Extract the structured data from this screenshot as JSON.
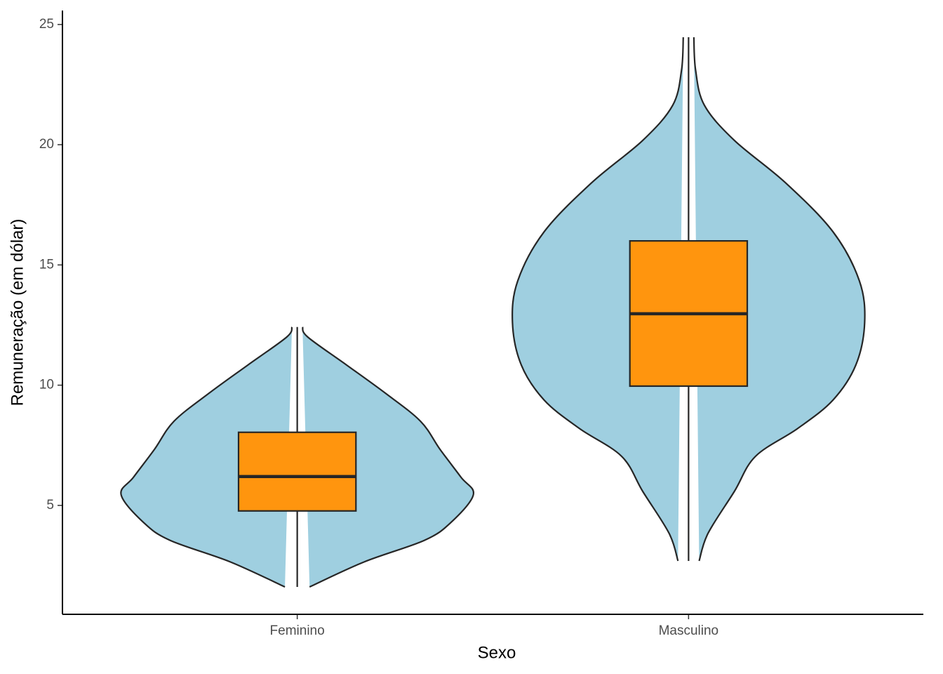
{
  "chart_data": {
    "type": "violin",
    "x_label": "Sexo",
    "y_label": "Remuneração (em dólar)",
    "categories": [
      "Feminino",
      "Masculino"
    ],
    "violin_color": "#9fcfe0",
    "box_color": "#ff950e",
    "ylim": [
      0.47,
      25.58
    ],
    "yticks": [
      5,
      10,
      15,
      20,
      25
    ],
    "boxes": [
      {
        "min": 1.61,
        "q1": 4.77,
        "median": 6.2,
        "q3": 8.04,
        "max": 12.42
      },
      {
        "min": 2.69,
        "q1": 9.96,
        "median": 12.97,
        "q3": 16.0,
        "max": 24.47
      }
    ],
    "violins": [
      {
        "y": [
          1.61,
          2.65,
          3.54,
          4.27,
          5.44,
          6.17,
          7.34,
          8.5,
          9.67,
          10.84,
          12.0,
          12.42
        ],
        "width": [
          0.07,
          0.38,
          0.72,
          0.87,
          1.0,
          0.93,
          0.81,
          0.7,
          0.5,
          0.28,
          0.06,
          0.03
        ]
      },
      {
        "y": [
          2.69,
          3.83,
          5.58,
          7.04,
          8.2,
          9.38,
          10.84,
          12.6,
          14.34,
          16.38,
          18.42,
          20.18,
          21.64,
          23.1,
          24.47
        ],
        "width": [
          0.06,
          0.11,
          0.26,
          0.38,
          0.62,
          0.82,
          0.95,
          1.0,
          0.97,
          0.82,
          0.55,
          0.26,
          0.09,
          0.04,
          0.03
        ]
      }
    ]
  }
}
